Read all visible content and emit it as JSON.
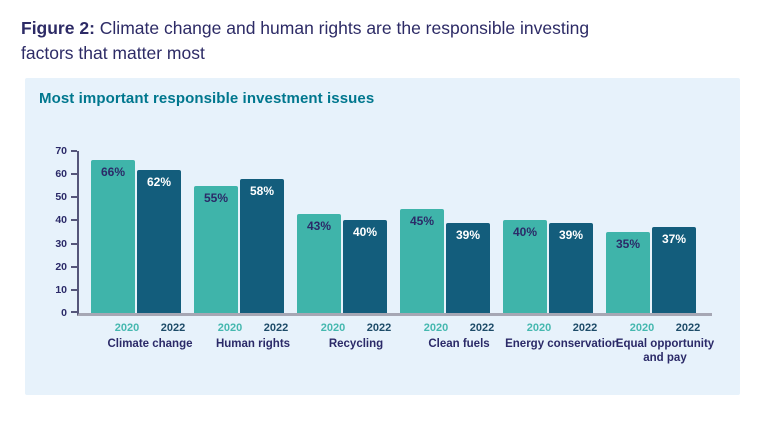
{
  "figure_title": {
    "prefix": "Figure 2:",
    "line1": "Climate change and human rights are the responsible investing",
    "line2": "factors that matter most"
  },
  "chart_data": {
    "type": "bar",
    "title": "Most important responsible investment issues",
    "categories": [
      "Climate change",
      "Human rights",
      "Recycling",
      "Clean fuels",
      "Energy conservation",
      "Equal opportunity and pay"
    ],
    "series": [
      {
        "name": "2020",
        "values": [
          66,
          55,
          43,
          45,
          40,
          35
        ]
      },
      {
        "name": "2022",
        "values": [
          62,
          58,
          40,
          39,
          39,
          37
        ]
      }
    ],
    "value_suffix": "%",
    "xlabel": "",
    "ylabel": "",
    "ylim": [
      0,
      70
    ],
    "yticks": [
      0,
      10,
      20,
      30,
      40,
      50,
      60,
      70
    ],
    "grid": false,
    "value_labels": "inside-top",
    "legend_position": "below-each-bar",
    "colors": {
      "bar_2020": "#3fb4aa",
      "bar_2022": "#135d7c",
      "label_on_2020": "#2b2a68",
      "label_on_2022": "#ffffff",
      "panel_background": "#e7f2fb",
      "chart_title": "#00778e",
      "figure_title": "#2d2b66",
      "axis_text": "#2b2a68",
      "baseline": "#a6a7b4"
    }
  }
}
